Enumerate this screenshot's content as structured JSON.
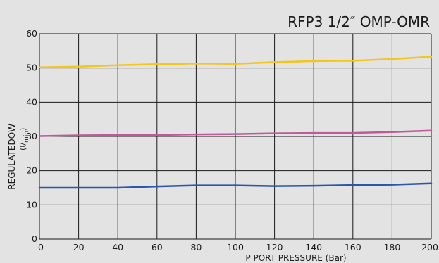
{
  "chart_data": {
    "type": "line",
    "title": "RFP3 1/2″ OMP-OMR",
    "xlabel": "P PORT PRESSURE (Bar)",
    "ylabel": "REGULATEDOW",
    "ylabel_unit_main": "(l/",
    "ylabel_unit_sub": "min",
    "ylabel_unit_close": ")",
    "xlim": [
      0,
      200
    ],
    "ylim": [
      0,
      60
    ],
    "x_ticks": [
      0,
      20,
      40,
      60,
      80,
      100,
      120,
      140,
      160,
      180,
      200
    ],
    "y_ticks": [
      0,
      10,
      20,
      30,
      40,
      50,
      60
    ],
    "grid": true,
    "series": [
      {
        "color": "#f5c518",
        "x": [
          0,
          20,
          40,
          60,
          80,
          100,
          120,
          140,
          160,
          180,
          200
        ],
        "values": [
          50.2,
          50.4,
          50.8,
          51.1,
          51.3,
          51.2,
          51.7,
          52.0,
          52.1,
          52.6,
          53.3
        ]
      },
      {
        "color": "#c0589a",
        "x": [
          0,
          20,
          40,
          60,
          80,
          100,
          120,
          140,
          160,
          180,
          200
        ],
        "values": [
          30.1,
          30.3,
          30.4,
          30.4,
          30.6,
          30.7,
          30.9,
          31.0,
          31.0,
          31.3,
          31.7
        ]
      },
      {
        "color": "#2a57a8",
        "x": [
          0,
          20,
          40,
          60,
          80,
          100,
          120,
          140,
          160,
          180,
          200
        ],
        "values": [
          15.0,
          15.0,
          15.0,
          15.4,
          15.7,
          15.7,
          15.5,
          15.6,
          15.8,
          15.9,
          16.3
        ]
      }
    ]
  }
}
